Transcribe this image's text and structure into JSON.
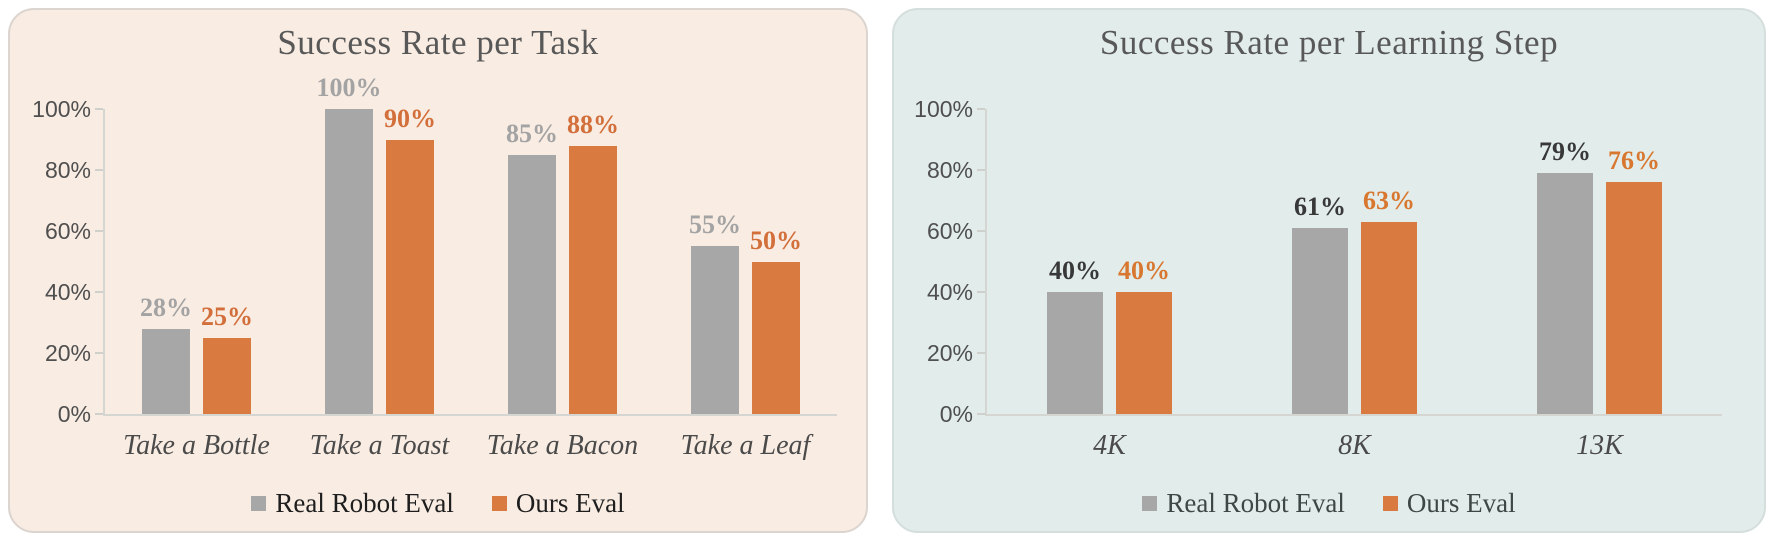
{
  "page": {
    "background": "#FFFFFF"
  },
  "charts": [
    {
      "id": "success-rate-per-task",
      "title": "Success Rate per Task",
      "panel_background": "#F9ECE3",
      "panel_border": "#DBD4CF",
      "chart_data": {
        "type": "bar",
        "title": "Success Rate per Task",
        "categories": [
          "Take a Bottle",
          "Take a Toast",
          "Take a Bacon",
          "Take a Leaf"
        ],
        "series": [
          {
            "name": "Real Robot Eval",
            "values": [
              28,
              100,
              85,
              55
            ],
            "bar_color": "#A7A7A7",
            "label_color": "#A3A3A3"
          },
          {
            "name": "Ours Eval",
            "values": [
              25,
              90,
              88,
              50
            ],
            "bar_color": "#D97B41",
            "label_color": "#D26F3A"
          }
        ],
        "value_suffix": "%",
        "y_ticks": [
          "0%",
          "20%",
          "40%",
          "60%",
          "80%",
          "100%"
        ],
        "ylim": [
          0,
          100
        ],
        "grid": false,
        "legend_position": "bottom",
        "legend_text_color": "#1E1E1E",
        "x_tick_style": "italic"
      }
    },
    {
      "id": "success-rate-per-learning-step",
      "title": "Success Rate per Learning Step",
      "panel_background": "#E2EDEB",
      "panel_border": "#D4DEDC",
      "chart_data": {
        "type": "bar",
        "title": "Success Rate per Learning Step",
        "categories": [
          "4K",
          "8K",
          "13K"
        ],
        "series": [
          {
            "name": "Real Robot Eval",
            "values": [
              40,
              61,
              79
            ],
            "bar_color": "#A7A7A7",
            "label_color": "#383838"
          },
          {
            "name": "Ours Eval",
            "values": [
              40,
              63,
              76
            ],
            "bar_color": "#D97B41",
            "label_color": "#D8772F"
          }
        ],
        "value_suffix": "%",
        "y_ticks": [
          "0%",
          "20%",
          "40%",
          "60%",
          "80%",
          "100%"
        ],
        "ylim": [
          0,
          100
        ],
        "grid": false,
        "legend_position": "bottom",
        "legend_text_color": "#3E4745",
        "x_tick_style": "italic"
      }
    }
  ]
}
